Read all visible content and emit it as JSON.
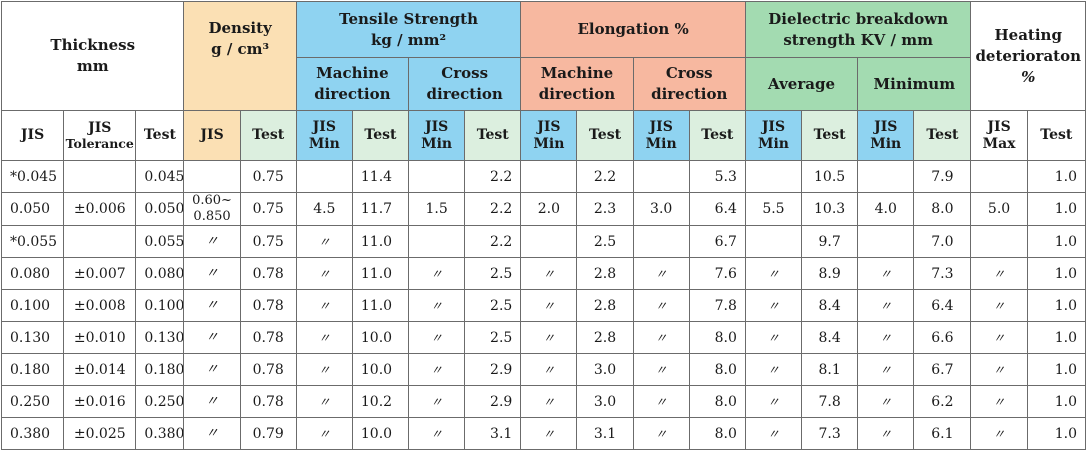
{
  "header": {
    "thickness": [
      "Thickness",
      "mm"
    ],
    "density": [
      "Density",
      "g / cm³"
    ],
    "tensile": [
      "Tensile Strength",
      "kg / mm²"
    ],
    "tensile_machine": [
      "Machine",
      "direction"
    ],
    "tensile_cross": [
      "Cross",
      "direction"
    ],
    "elongation": "Elongation %",
    "elong_machine": [
      "Machine",
      "direction"
    ],
    "elong_cross": [
      "Cross",
      "direction"
    ],
    "dielectric": [
      "Dielectric breakdown",
      "strength KV / mm"
    ],
    "diel_average": "Average",
    "diel_minimum": "Minimum",
    "heating": [
      "Heating",
      "deterioraton",
      "%"
    ],
    "sub": {
      "jis": "JIS",
      "jis_tolerance": [
        "JIS",
        "Tolerance"
      ],
      "test": "Test",
      "jis_min": [
        "JIS",
        "Min"
      ],
      "jis_max": [
        "JIS",
        "Max"
      ]
    }
  },
  "rows": [
    {
      "jis": "*0.045",
      "tol": "",
      "test": "0.045",
      "dens_jis": "",
      "dens_test": "0.75",
      "tm_min": "",
      "tm_test": "11.4",
      "tc_min": "",
      "tc_test": "2.2",
      "em_min": "",
      "em_test": "2.2",
      "ec_min": "",
      "ec_test": "5.3",
      "da_min": "",
      "da_test": "10.5",
      "dm_min": "",
      "dm_test": "7.9",
      "h_max": "",
      "h_test": "1.0"
    },
    {
      "jis": "0.050",
      "tol": "±0.006",
      "test": "0.050",
      "dens_jis": "0.60~\n0.850",
      "dens_test": "0.75",
      "tm_min": "4.5",
      "tm_test": "11.7",
      "tc_min": "1.5",
      "tc_test": "2.2",
      "em_min": "2.0",
      "em_test": "2.3",
      "ec_min": "3.0",
      "ec_test": "6.4",
      "da_min": "5.5",
      "da_test": "10.3",
      "dm_min": "4.0",
      "dm_test": "8.0",
      "h_max": "5.0",
      "h_test": "1.0"
    },
    {
      "jis": "*0.055",
      "tol": "",
      "test": "0.055",
      "dens_jis": "〃",
      "dens_test": "0.75",
      "tm_min": "〃",
      "tm_test": "11.0",
      "tc_min": "",
      "tc_test": "2.2",
      "em_min": "",
      "em_test": "2.5",
      "ec_min": "",
      "ec_test": "6.7",
      "da_min": "",
      "da_test": "9.7",
      "dm_min": "",
      "dm_test": "7.0",
      "h_max": "",
      "h_test": "1.0"
    },
    {
      "jis": "0.080",
      "tol": "±0.007",
      "test": "0.080",
      "dens_jis": "〃",
      "dens_test": "0.78",
      "tm_min": "〃",
      "tm_test": "11.0",
      "tc_min": "〃",
      "tc_test": "2.5",
      "em_min": "〃",
      "em_test": "2.8",
      "ec_min": "〃",
      "ec_test": "7.6",
      "da_min": "〃",
      "da_test": "8.9",
      "dm_min": "〃",
      "dm_test": "7.3",
      "h_max": "〃",
      "h_test": "1.0"
    },
    {
      "jis": "0.100",
      "tol": "±0.008",
      "test": "0.100",
      "dens_jis": "〃",
      "dens_test": "0.78",
      "tm_min": "〃",
      "tm_test": "11.0",
      "tc_min": "〃",
      "tc_test": "2.5",
      "em_min": "〃",
      "em_test": "2.8",
      "ec_min": "〃",
      "ec_test": "7.8",
      "da_min": "〃",
      "da_test": "8.4",
      "dm_min": "〃",
      "dm_test": "6.4",
      "h_max": "〃",
      "h_test": "1.0"
    },
    {
      "jis": "0.130",
      "tol": "±0.010",
      "test": "0.130",
      "dens_jis": "〃",
      "dens_test": "0.78",
      "tm_min": "〃",
      "tm_test": "10.0",
      "tc_min": "〃",
      "tc_test": "2.5",
      "em_min": "〃",
      "em_test": "2.8",
      "ec_min": "〃",
      "ec_test": "8.0",
      "da_min": "〃",
      "da_test": "8.4",
      "dm_min": "〃",
      "dm_test": "6.6",
      "h_max": "〃",
      "h_test": "1.0"
    },
    {
      "jis": "0.180",
      "tol": "±0.014",
      "test": "0.180",
      "dens_jis": "〃",
      "dens_test": "0.78",
      "tm_min": "〃",
      "tm_test": "10.0",
      "tc_min": "〃",
      "tc_test": "2.9",
      "em_min": "〃",
      "em_test": "3.0",
      "ec_min": "〃",
      "ec_test": "8.0",
      "da_min": "〃",
      "da_test": "8.1",
      "dm_min": "〃",
      "dm_test": "6.7",
      "h_max": "〃",
      "h_test": "1.0"
    },
    {
      "jis": "0.250",
      "tol": "±0.016",
      "test": "0.250",
      "dens_jis": "〃",
      "dens_test": "0.78",
      "tm_min": "〃",
      "tm_test": "10.2",
      "tc_min": "〃",
      "tc_test": "2.9",
      "em_min": "〃",
      "em_test": "3.0",
      "ec_min": "〃",
      "ec_test": "8.0",
      "da_min": "〃",
      "da_test": "7.8",
      "dm_min": "〃",
      "dm_test": "6.2",
      "h_max": "〃",
      "h_test": "1.0"
    },
    {
      "jis": "0.380",
      "tol": "±0.025",
      "test": "0.380",
      "dens_jis": "〃",
      "dens_test": "0.79",
      "tm_min": "〃",
      "tm_test": "10.0",
      "tc_min": "〃",
      "tc_test": "3.1",
      "em_min": "〃",
      "em_test": "3.1",
      "ec_min": "〃",
      "ec_test": "8.0",
      "da_min": "〃",
      "da_test": "7.3",
      "dm_min": "〃",
      "dm_test": "6.1",
      "h_max": "〃",
      "h_test": "1.0"
    }
  ]
}
